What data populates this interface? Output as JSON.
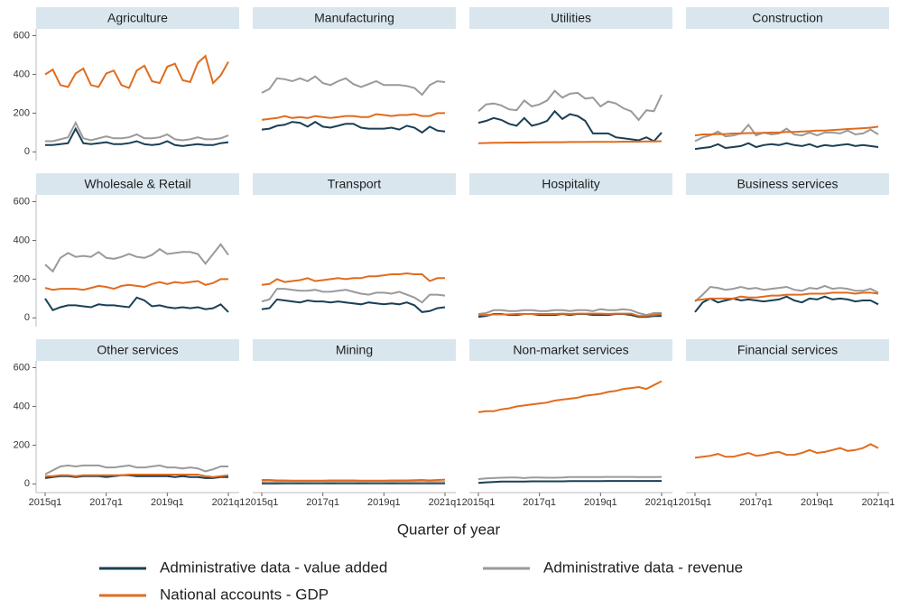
{
  "chart_data": {
    "type": "line",
    "x_label": "Quarter of year",
    "categories": [
      "2015q1",
      null,
      null,
      null,
      null,
      null,
      null,
      null,
      "2017q1",
      null,
      null,
      null,
      null,
      null,
      null,
      null,
      "2019q1",
      null,
      null,
      null,
      null,
      null,
      null,
      null,
      "2021q1"
    ],
    "ylim": [
      -45,
      635
    ],
    "yticks": [
      0,
      200,
      400,
      600
    ],
    "series": [
      {
        "name": "Administrative data - value added",
        "color": "#1a3f55"
      },
      {
        "name": "Administrative data - revenue",
        "color": "#9a9a9a"
      },
      {
        "name": "National accounts - GDP",
        "color": "#e06c1e"
      }
    ],
    "panels": [
      {
        "title": "Agriculture",
        "values": [
          [
            35,
            35,
            40,
            45,
            120,
            45,
            40,
            45,
            50,
            40,
            40,
            45,
            55,
            40,
            35,
            40,
            55,
            35,
            30,
            35,
            40,
            35,
            35,
            45,
            50
          ],
          [
            55,
            55,
            65,
            75,
            150,
            70,
            60,
            70,
            80,
            70,
            70,
            75,
            90,
            70,
            70,
            75,
            90,
            65,
            60,
            65,
            75,
            65,
            65,
            70,
            85
          ],
          [
            400,
            425,
            345,
            335,
            405,
            430,
            345,
            335,
            405,
            420,
            345,
            330,
            420,
            445,
            365,
            355,
            440,
            455,
            370,
            360,
            460,
            495,
            355,
            395,
            465
          ]
        ]
      },
      {
        "title": "Manufacturing",
        "values": [
          [
            115,
            120,
            135,
            140,
            155,
            150,
            130,
            155,
            130,
            125,
            135,
            145,
            145,
            125,
            120,
            120,
            120,
            125,
            115,
            135,
            125,
            100,
            130,
            110,
            105
          ],
          [
            305,
            325,
            380,
            375,
            365,
            380,
            365,
            390,
            355,
            345,
            365,
            380,
            350,
            335,
            350,
            365,
            345,
            345,
            345,
            340,
            330,
            295,
            345,
            365,
            360
          ],
          [
            165,
            170,
            175,
            185,
            175,
            180,
            175,
            185,
            180,
            175,
            180,
            185,
            185,
            180,
            180,
            195,
            190,
            185,
            190,
            190,
            195,
            185,
            185,
            200,
            200
          ]
        ]
      },
      {
        "title": "Utilities",
        "values": [
          [
            150,
            160,
            175,
            165,
            145,
            135,
            175,
            135,
            145,
            160,
            210,
            170,
            195,
            185,
            160,
            95,
            95,
            95,
            75,
            70,
            65,
            60,
            75,
            55,
            100
          ],
          [
            210,
            245,
            250,
            240,
            220,
            215,
            265,
            235,
            245,
            265,
            315,
            280,
            300,
            305,
            275,
            280,
            235,
            260,
            250,
            225,
            210,
            165,
            215,
            210,
            295
          ],
          [
            45,
            46,
            47,
            47,
            48,
            48,
            48,
            49,
            49,
            50,
            50,
            50,
            51,
            51,
            51,
            52,
            52,
            52,
            52,
            53,
            53,
            53,
            54,
            54,
            55
          ]
        ]
      },
      {
        "title": "Construction",
        "values": [
          [
            15,
            20,
            25,
            40,
            20,
            25,
            30,
            45,
            25,
            35,
            40,
            35,
            45,
            35,
            30,
            40,
            25,
            35,
            30,
            35,
            40,
            30,
            35,
            30,
            25
          ],
          [
            55,
            75,
            85,
            105,
            80,
            85,
            95,
            140,
            85,
            100,
            90,
            95,
            120,
            90,
            85,
            100,
            85,
            100,
            100,
            95,
            110,
            90,
            95,
            115,
            90
          ],
          [
            85,
            90,
            90,
            92,
            92,
            95,
            95,
            97,
            97,
            98,
            100,
            100,
            103,
            103,
            105,
            107,
            110,
            110,
            113,
            115,
            118,
            120,
            122,
            125,
            130
          ]
        ]
      },
      {
        "title": "Wholesale & Retail",
        "values": [
          [
            100,
            40,
            55,
            65,
            65,
            60,
            55,
            70,
            65,
            65,
            60,
            55,
            105,
            90,
            60,
            65,
            55,
            50,
            55,
            50,
            55,
            45,
            50,
            70,
            30
          ],
          [
            275,
            240,
            310,
            335,
            315,
            320,
            315,
            340,
            310,
            305,
            315,
            330,
            315,
            310,
            325,
            355,
            330,
            335,
            340,
            340,
            330,
            280,
            330,
            380,
            325
          ],
          [
            155,
            145,
            150,
            150,
            150,
            145,
            155,
            165,
            160,
            150,
            165,
            170,
            165,
            160,
            175,
            185,
            175,
            185,
            180,
            185,
            190,
            170,
            180,
            200,
            200
          ]
        ]
      },
      {
        "title": "Transport",
        "values": [
          [
            45,
            50,
            95,
            90,
            85,
            80,
            90,
            85,
            85,
            80,
            85,
            80,
            75,
            70,
            80,
            75,
            70,
            75,
            70,
            80,
            65,
            30,
            35,
            50,
            55
          ],
          [
            85,
            95,
            150,
            150,
            145,
            140,
            140,
            145,
            135,
            135,
            140,
            145,
            135,
            125,
            120,
            130,
            130,
            125,
            135,
            120,
            105,
            80,
            120,
            120,
            115
          ],
          [
            170,
            175,
            200,
            185,
            190,
            195,
            205,
            190,
            195,
            200,
            205,
            200,
            205,
            205,
            215,
            215,
            220,
            225,
            225,
            230,
            225,
            225,
            190,
            205,
            205
          ]
        ]
      },
      {
        "title": "Hospitality",
        "values": [
          [
            5,
            10,
            20,
            20,
            15,
            15,
            20,
            20,
            15,
            15,
            15,
            20,
            15,
            20,
            20,
            15,
            15,
            15,
            20,
            20,
            15,
            5,
            5,
            10,
            10
          ],
          [
            20,
            25,
            40,
            40,
            35,
            35,
            40,
            40,
            35,
            35,
            40,
            40,
            35,
            40,
            40,
            35,
            45,
            40,
            40,
            45,
            40,
            25,
            15,
            25,
            25
          ],
          [
            15,
            15,
            18,
            18,
            18,
            20,
            20,
            20,
            20,
            20,
            20,
            22,
            20,
            22,
            22,
            22,
            22,
            20,
            22,
            22,
            22,
            10,
            10,
            15,
            20
          ]
        ]
      },
      {
        "title": "Business services",
        "values": [
          [
            30,
            80,
            100,
            80,
            90,
            100,
            90,
            95,
            90,
            85,
            90,
            95,
            110,
            90,
            80,
            100,
            95,
            110,
            95,
            100,
            95,
            85,
            90,
            90,
            70
          ],
          [
            85,
            120,
            160,
            155,
            145,
            150,
            160,
            150,
            155,
            145,
            150,
            155,
            160,
            145,
            140,
            155,
            150,
            165,
            150,
            155,
            150,
            140,
            140,
            150,
            130
          ],
          [
            90,
            95,
            100,
            100,
            100,
            100,
            110,
            105,
            105,
            110,
            115,
            115,
            120,
            120,
            120,
            125,
            125,
            125,
            130,
            130,
            130,
            125,
            130,
            130,
            125
          ]
        ]
      },
      {
        "title": "Other services",
        "values": [
          [
            30,
            35,
            40,
            40,
            35,
            40,
            40,
            40,
            35,
            40,
            45,
            45,
            40,
            40,
            40,
            40,
            40,
            35,
            40,
            35,
            35,
            30,
            30,
            35,
            35
          ],
          [
            50,
            70,
            90,
            95,
            90,
            95,
            95,
            95,
            85,
            85,
            90,
            95,
            85,
            85,
            90,
            95,
            85,
            85,
            80,
            85,
            80,
            65,
            75,
            90,
            90
          ],
          [
            40,
            40,
            45,
            45,
            40,
            45,
            45,
            45,
            45,
            45,
            45,
            48,
            48,
            48,
            48,
            48,
            48,
            48,
            48,
            48,
            48,
            40,
            35,
            40,
            45
          ]
        ]
      },
      {
        "title": "Mining",
        "values": [
          [
            2,
            2,
            2,
            3,
            3,
            3,
            3,
            3,
            3,
            3,
            3,
            3,
            3,
            3,
            3,
            3,
            3,
            3,
            3,
            3,
            3,
            3,
            3,
            3,
            3
          ],
          [
            10,
            9,
            10,
            10,
            10,
            11,
            10,
            10,
            10,
            11,
            10,
            10,
            10,
            11,
            10,
            10,
            10,
            11,
            10,
            10,
            10,
            9,
            10,
            10,
            10
          ],
          [
            20,
            20,
            18,
            18,
            17,
            17,
            17,
            17,
            17,
            18,
            18,
            18,
            18,
            17,
            17,
            17,
            17,
            18,
            18,
            18,
            19,
            20,
            18,
            20,
            22
          ]
        ]
      },
      {
        "title": "Non-market services",
        "values": [
          [
            5,
            8,
            10,
            12,
            12,
            12,
            12,
            13,
            13,
            13,
            13,
            13,
            14,
            14,
            14,
            14,
            14,
            15,
            15,
            15,
            15,
            15,
            15,
            15,
            15
          ],
          [
            25,
            28,
            30,
            32,
            33,
            33,
            30,
            33,
            33,
            32,
            32,
            33,
            35,
            35,
            35,
            35,
            35,
            36,
            36,
            36,
            36,
            35,
            35,
            35,
            36
          ],
          [
            370,
            375,
            375,
            385,
            390,
            400,
            405,
            410,
            415,
            420,
            430,
            435,
            440,
            445,
            455,
            460,
            465,
            475,
            480,
            490,
            495,
            500,
            490,
            510,
            530
          ]
        ]
      },
      {
        "title": "Financial services",
        "values": [
          [
            null,
            null,
            null,
            null,
            null,
            null,
            null,
            null,
            null,
            null,
            null,
            null,
            null,
            null,
            null,
            null,
            null,
            null,
            null,
            null,
            null,
            null,
            null,
            null,
            null
          ],
          [
            null,
            null,
            null,
            null,
            null,
            null,
            null,
            null,
            null,
            null,
            null,
            null,
            null,
            null,
            null,
            null,
            null,
            null,
            null,
            null,
            null,
            null,
            null,
            null,
            null
          ],
          [
            135,
            140,
            145,
            155,
            140,
            140,
            150,
            160,
            145,
            150,
            160,
            165,
            150,
            150,
            160,
            175,
            160,
            165,
            175,
            185,
            170,
            175,
            185,
            205,
            185
          ]
        ]
      }
    ]
  }
}
